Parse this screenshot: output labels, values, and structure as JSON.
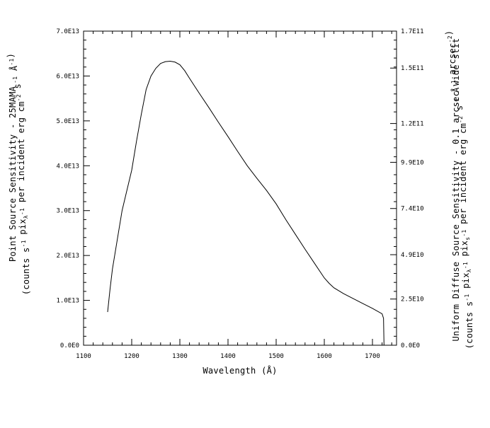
{
  "chart_data": {
    "type": "line",
    "title": "",
    "xlabel": "Wavelength (Å)",
    "ylabel_left": {
      "line1": "Point Source Sensitivity - 25MAMA",
      "line2_parts": [
        "(counts s",
        "-1",
        " pix",
        "λ",
        "-1",
        " per incident erg cm",
        "-2",
        " s",
        "-1",
        " Å",
        "-1",
        ")"
      ]
    },
    "ylabel_right": {
      "line1": "Uniform Diffuse Source Sensitivity - 0.1 arcsec wide slit",
      "line2_parts": [
        "(counts s",
        "-1",
        " pix",
        "λ",
        "-1",
        " pix",
        "s",
        "-1",
        " per incident erg cm",
        "-2",
        " s",
        "-1",
        " Å",
        "-1",
        " arcsec",
        "-2",
        ")"
      ]
    },
    "xlim": [
      1100,
      1750
    ],
    "ylim": [
      0,
      70000000000000.0
    ],
    "ylim_right": [
      0,
      170000000000.0
    ],
    "x_ticks": [
      1100,
      1200,
      1300,
      1400,
      1500,
      1600,
      1700
    ],
    "x_tick_labels": [
      "1100",
      "1200",
      "1300",
      "1400",
      "1500",
      "1600",
      "1700"
    ],
    "y_ticks": [
      0,
      10000000000000.0,
      20000000000000.0,
      30000000000000.0,
      40000000000000.0,
      50000000000000.0,
      60000000000000.0,
      70000000000000.0
    ],
    "y_tick_labels": [
      "0.0E0",
      "1.0E13",
      "2.0E13",
      "3.0E13",
      "4.0E13",
      "5.0E13",
      "6.0E13",
      "7.0E13"
    ],
    "y_right_ticks": [
      0,
      25000000000.0,
      49000000000.0,
      74000000000.0,
      99000000000.0,
      120000000000.0,
      150000000000.0,
      170000000000.0
    ],
    "y_right_tick_labels": [
      "0.0E0",
      "2.5E10",
      "4.9E10",
      "7.4E10",
      "9.9E10",
      "1.2E11",
      "1.5E11",
      "1.7E11"
    ],
    "series": [
      {
        "x": [
          1150,
          1155,
          1160,
          1170,
          1180,
          1190,
          1200,
          1210,
          1220,
          1230,
          1240,
          1250,
          1260,
          1270,
          1280,
          1290,
          1300,
          1310,
          1320,
          1340,
          1360,
          1380,
          1400,
          1420,
          1440,
          1460,
          1480,
          1500,
          1520,
          1540,
          1560,
          1580,
          1600,
          1610,
          1620,
          1640,
          1660,
          1680,
          1700,
          1720,
          1723,
          1724
        ],
        "values": [
          7400000000000.0,
          12500000000000.0,
          17000000000000.0,
          23500000000000.0,
          30000000000000.0,
          34500000000000.0,
          39000000000000.0,
          45500000000000.0,
          51500000000000.0,
          57000000000000.0,
          60000000000000.0,
          61700000000000.0,
          62800000000000.0,
          63200000000000.0,
          63300000000000.0,
          63100000000000.0,
          62500000000000.0,
          61200000000000.0,
          59500000000000.0,
          56200000000000.0,
          53000000000000.0,
          49700000000000.0,
          46500000000000.0,
          43200000000000.0,
          40000000000000.0,
          37200000000000.0,
          34500000000000.0,
          31500000000000.0,
          28000000000000.0,
          24700000000000.0,
          21400000000000.0,
          18200000000000.0,
          15000000000000.0,
          13800000000000.0,
          12800000000000.0,
          11500000000000.0,
          10400000000000.0,
          9300000000000.0,
          8200000000000.0,
          7000000000000.0,
          6000000000000.0,
          0
        ]
      }
    ],
    "grid": false,
    "legend": "none"
  }
}
